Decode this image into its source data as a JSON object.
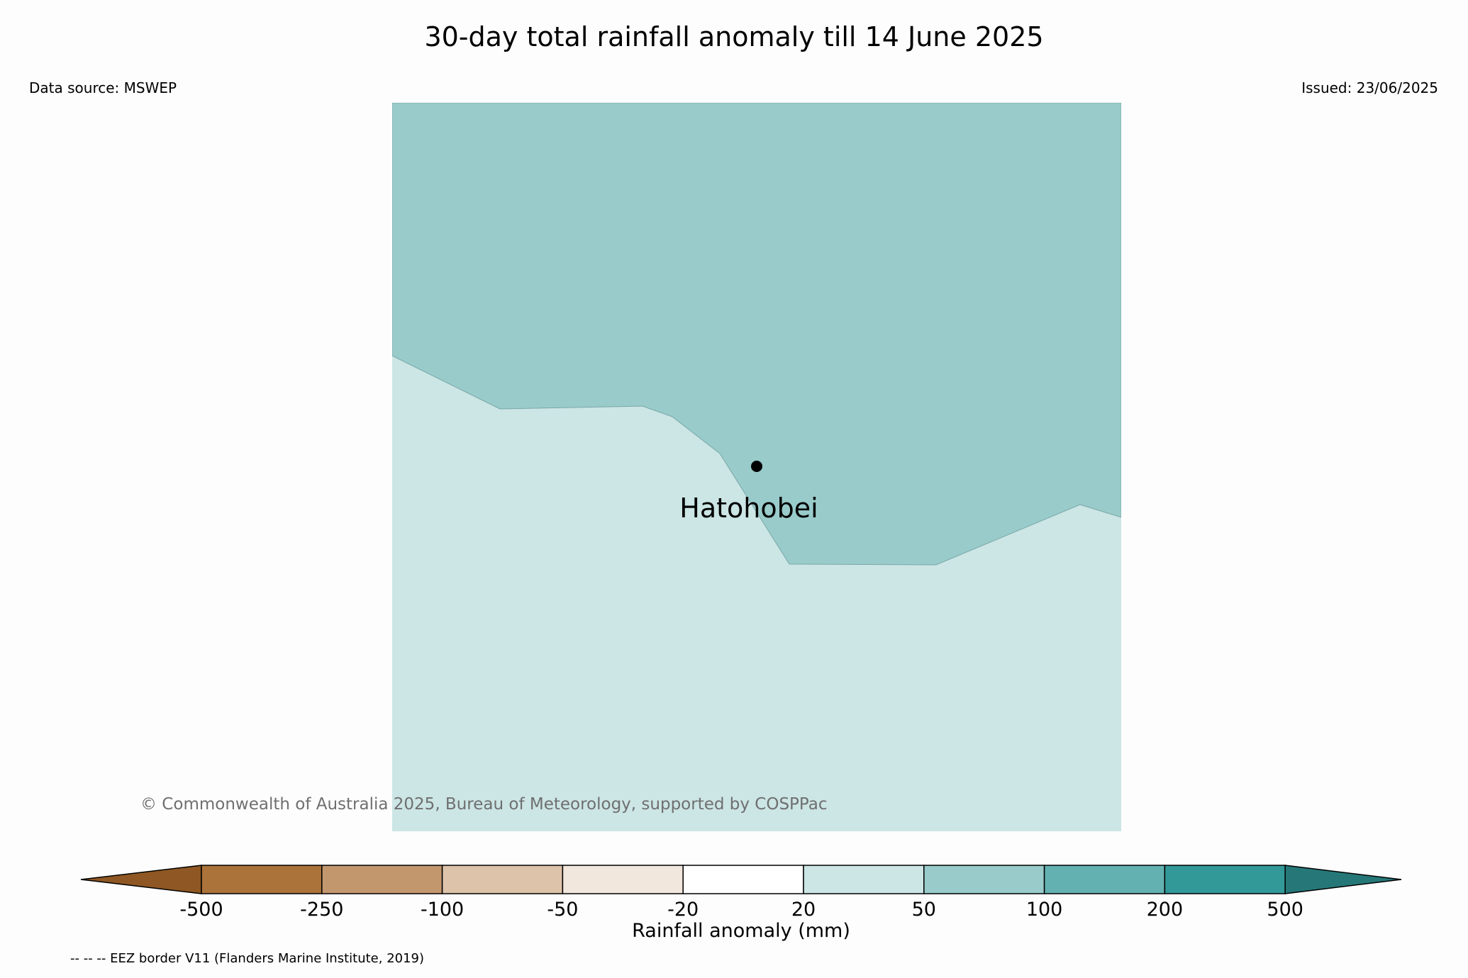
{
  "title": "30-day total rainfall anomaly till 14 June 2025",
  "data_source": "Data source: MSWEP",
  "issued": "Issued: 23/06/2025",
  "location": {
    "name": "Hatohobei"
  },
  "map": {
    "regions": [
      {
        "name": "anomaly-50-100",
        "color": "#99cbcb"
      },
      {
        "name": "anomaly-20-50",
        "color": "#cce5e5"
      }
    ]
  },
  "copyright": "© Commonwealth of Australia 2025, Bureau of Meteorology, supported by COSPPac",
  "colorbar": {
    "label": "Rainfall anomaly (mm)",
    "ticks": [
      "-500",
      "-250",
      "-100",
      "-50",
      "-20",
      "20",
      "50",
      "100",
      "200",
      "500"
    ],
    "colors": [
      "#8f5723",
      "#ab733a",
      "#c3976e",
      "#dcc3aa",
      "#f1e7dd",
      "#ffffff",
      "#cce5e5",
      "#99cbcb",
      "#64b1b1",
      "#339998",
      "#267878"
    ]
  },
  "eez_note": "-- -- -- EEZ border V11 (Flanders Marine Institute, 2019)"
}
